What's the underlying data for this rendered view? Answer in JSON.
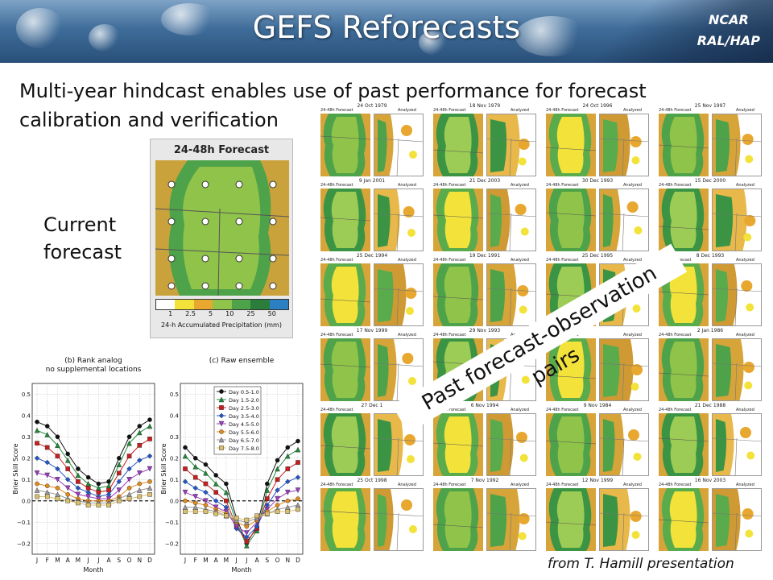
{
  "header": {
    "title": "GEFS Reforecasts",
    "org_line1": "NCAR",
    "org_line2": "RAL/HAP"
  },
  "subtitle": "Multi-year hindcast enables use of past performance for forecast calibration and verification",
  "current_label": {
    "line1": "Current",
    "line2": "forecast"
  },
  "forecast_map": {
    "title": "24-48h Forecast",
    "colorbar_labels": [
      "1",
      "2.5",
      "5",
      "10",
      "25",
      "50"
    ],
    "colorbar_colors": [
      "#ffffff",
      "#f2e23a",
      "#e8a72e",
      "#8fc34a",
      "#4ea24a",
      "#2a7d3a",
      "#2c7fc3"
    ],
    "colorbar_title": "24-h Accumulated Precipitation (mm)"
  },
  "analogs": {
    "forecast_label": "24-48h Forecast",
    "analyzed_label": "Analyzed",
    "dates": [
      "24 Oct 1979",
      "18 Nov 1979",
      "24 Oct 1996",
      "25 Nov 1997",
      "9 Jan 2001",
      "21 Dec 2003",
      "30 Dec 1993",
      "15 Dec 2000",
      "25 Dec 1994",
      "19 Dec 1991",
      "25 Dec 1995",
      "8 Dec 1993",
      "17 Nov 1999",
      "29 Nov 1993",
      "",
      "2 Jan 1986",
      "27 Dec 1",
      "6 Nov 1994",
      "9 Nov 1984",
      "21 Dec 1988",
      "25 Oct 1998",
      "7 Nov 1992",
      "12 Nov 1999",
      "16 Nov 2003"
    ]
  },
  "past_pairs_label": "Past forecast-observation pairs",
  "credit": "from T. Hamill presentation",
  "chart_data": [
    {
      "type": "line",
      "title": "(b) Rank analog",
      "subtitle": "no supplemental locations",
      "xlabel": "Month",
      "ylabel": "Brier Skill Score",
      "categories": [
        "J",
        "F",
        "M",
        "A",
        "M",
        "J",
        "J",
        "A",
        "S",
        "O",
        "N",
        "D"
      ],
      "ylim": [
        -0.25,
        0.55
      ],
      "yticks": [
        "0.5",
        "0.4",
        "0.3",
        "0.2",
        "0.1",
        "0.0",
        "−0.1",
        "−0.2"
      ],
      "grid": true,
      "series": [
        {
          "values": [
            0.37,
            0.35,
            0.3,
            0.22,
            0.15,
            0.11,
            0.08,
            0.09,
            0.2,
            0.3,
            0.35,
            0.38
          ],
          "color": "#111111",
          "marker": "circle"
        },
        {
          "values": [
            0.33,
            0.31,
            0.26,
            0.19,
            0.12,
            0.08,
            0.06,
            0.07,
            0.17,
            0.27,
            0.32,
            0.35
          ],
          "color": "#1f8a3a",
          "marker": "triangle"
        },
        {
          "values": [
            0.27,
            0.25,
            0.21,
            0.15,
            0.09,
            0.06,
            0.04,
            0.05,
            0.13,
            0.21,
            0.26,
            0.29
          ],
          "color": "#c81e1e",
          "marker": "square"
        },
        {
          "values": [
            0.2,
            0.18,
            0.15,
            0.1,
            0.06,
            0.04,
            0.02,
            0.03,
            0.09,
            0.15,
            0.19,
            0.21
          ],
          "color": "#2456c7",
          "marker": "diamond"
        },
        {
          "values": [
            0.13,
            0.12,
            0.1,
            0.06,
            0.03,
            0.02,
            0.01,
            0.01,
            0.05,
            0.1,
            0.13,
            0.15
          ],
          "color": "#9b3cc0",
          "marker": "tridown"
        },
        {
          "values": [
            0.08,
            0.07,
            0.06,
            0.03,
            0.01,
            0.0,
            0.0,
            0.0,
            0.02,
            0.06,
            0.08,
            0.09
          ],
          "color": "#e08a1e",
          "marker": "circle"
        },
        {
          "values": [
            0.05,
            0.04,
            0.03,
            0.01,
            0.0,
            -0.01,
            -0.01,
            -0.01,
            0.01,
            0.03,
            0.05,
            0.06
          ],
          "color": "#999999",
          "marker": "triangle"
        },
        {
          "values": [
            0.02,
            0.02,
            0.01,
            0.0,
            -0.01,
            -0.02,
            -0.02,
            -0.02,
            0.0,
            0.01,
            0.02,
            0.03
          ],
          "color": "#d8c070",
          "marker": "square"
        }
      ]
    },
    {
      "type": "line",
      "title": "(c) Raw ensemble",
      "xlabel": "Month",
      "ylabel": "Brier Skill Score",
      "categories": [
        "J",
        "F",
        "M",
        "A",
        "M",
        "J",
        "J",
        "A",
        "S",
        "O",
        "N",
        "D"
      ],
      "ylim": [
        -0.25,
        0.55
      ],
      "yticks": [
        "0.5",
        "0.4",
        "0.3",
        "0.2",
        "0.1",
        "0.0",
        "−0.1",
        "−0.2"
      ],
      "grid": true,
      "legend": "top-right",
      "series": [
        {
          "name": "Day 0.5-1.0",
          "values": [
            0.25,
            0.2,
            0.17,
            0.12,
            0.08,
            -0.08,
            -0.2,
            -0.12,
            0.08,
            0.19,
            0.25,
            0.28
          ],
          "color": "#111111",
          "marker": "circle"
        },
        {
          "name": "Day 1.5-2.0",
          "values": [
            0.21,
            0.16,
            0.13,
            0.08,
            0.04,
            -0.1,
            -0.21,
            -0.14,
            0.05,
            0.15,
            0.21,
            0.24
          ],
          "color": "#1f8a3a",
          "marker": "triangle"
        },
        {
          "name": "Day 2.5-3.0",
          "values": [
            0.15,
            0.11,
            0.08,
            0.04,
            0.0,
            -0.12,
            -0.19,
            -0.13,
            0.01,
            0.1,
            0.15,
            0.18
          ],
          "color": "#c81e1e",
          "marker": "square"
        },
        {
          "name": "Day 3.5-4.0",
          "values": [
            0.09,
            0.06,
            0.04,
            0.0,
            -0.03,
            -0.13,
            -0.17,
            -0.12,
            -0.02,
            0.05,
            0.09,
            0.11
          ],
          "color": "#2456c7",
          "marker": "diamond"
        },
        {
          "name": "Day 4.5-5.0",
          "values": [
            0.04,
            0.02,
            0.0,
            -0.03,
            -0.05,
            -0.12,
            -0.15,
            -0.1,
            -0.04,
            0.01,
            0.04,
            0.05
          ],
          "color": "#9b3cc0",
          "marker": "tridown"
        },
        {
          "name": "Day 5.5-6.0",
          "values": [
            0.0,
            -0.01,
            -0.02,
            -0.04,
            -0.06,
            -0.1,
            -0.12,
            -0.09,
            -0.05,
            -0.02,
            0.0,
            0.01
          ],
          "color": "#e08a1e",
          "marker": "circle"
        },
        {
          "name": "Day 6.5-7.0",
          "values": [
            -0.03,
            -0.03,
            -0.04,
            -0.05,
            -0.07,
            -0.09,
            -0.1,
            -0.08,
            -0.06,
            -0.04,
            -0.03,
            -0.02
          ],
          "color": "#999999",
          "marker": "triangle"
        },
        {
          "name": "Day 7.5-8.0",
          "values": [
            -0.05,
            -0.05,
            -0.05,
            -0.06,
            -0.07,
            -0.08,
            -0.09,
            -0.07,
            -0.06,
            -0.05,
            -0.05,
            -0.04
          ],
          "color": "#d8c070",
          "marker": "square"
        }
      ]
    }
  ]
}
